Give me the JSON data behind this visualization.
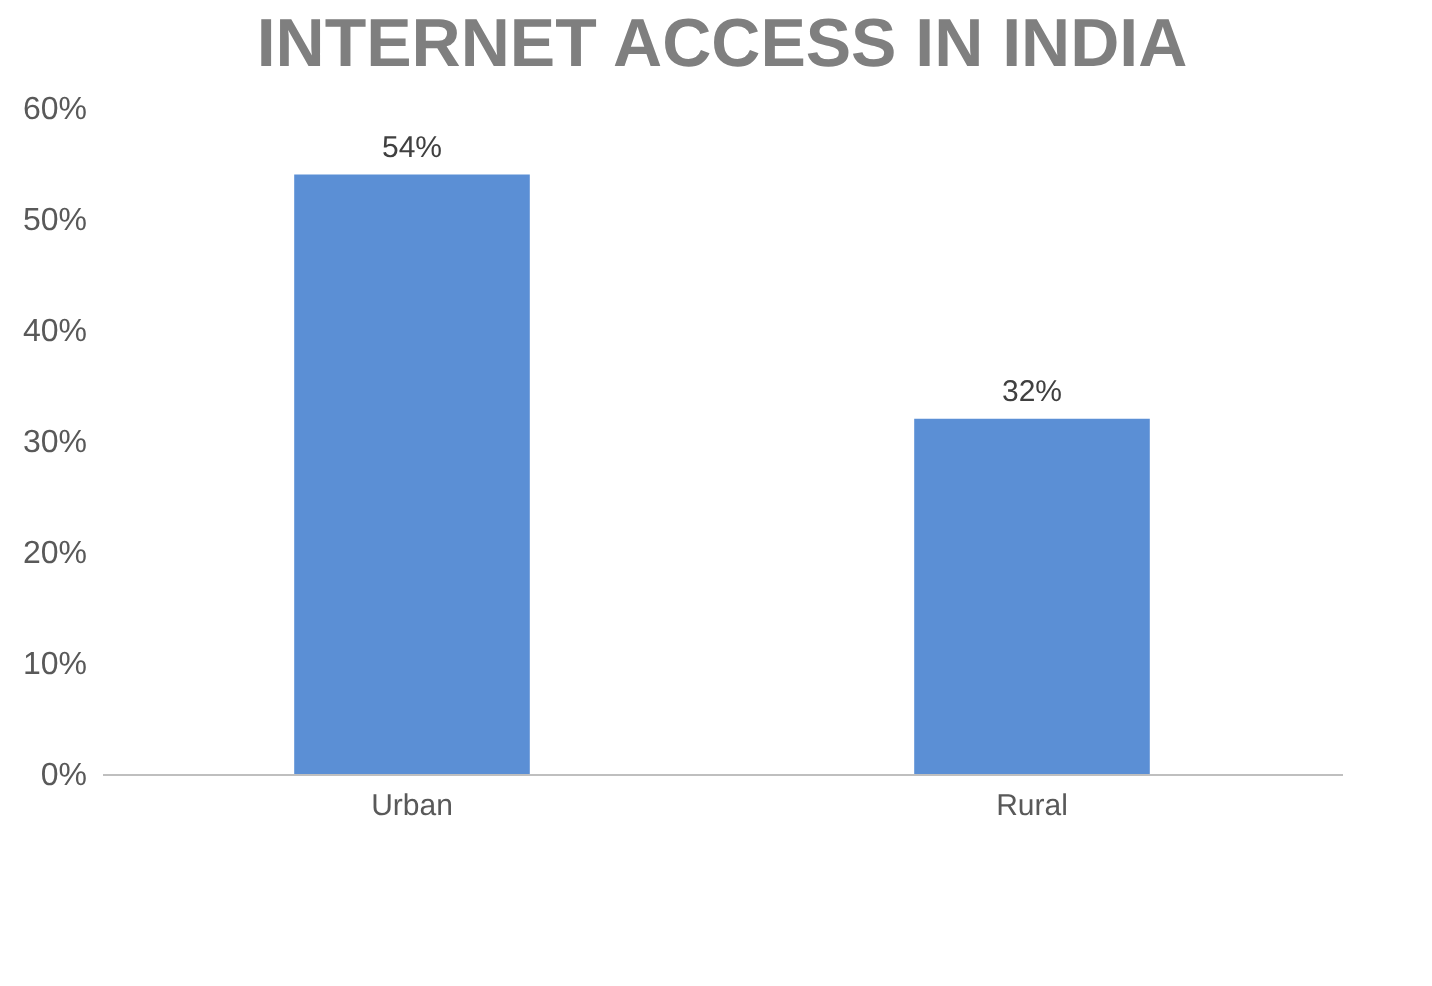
{
  "chart_data": {
    "type": "bar",
    "title": "INTERNET ACCESS IN INDIA",
    "categories": [
      "Urban",
      "Rural"
    ],
    "values": [
      54,
      32
    ],
    "color": "#5b8fd5",
    "value_labels": [
      "54%",
      "32%"
    ],
    "ylim": [
      0,
      60
    ],
    "yticks": [
      {
        "value": 0,
        "label": "0%"
      },
      {
        "value": 10,
        "label": "10%"
      },
      {
        "value": 20,
        "label": "20%"
      },
      {
        "value": 30,
        "label": "30%"
      },
      {
        "value": 40,
        "label": "40%"
      },
      {
        "value": 50,
        "label": "50%"
      },
      {
        "value": 60,
        "label": "60%"
      }
    ]
  }
}
